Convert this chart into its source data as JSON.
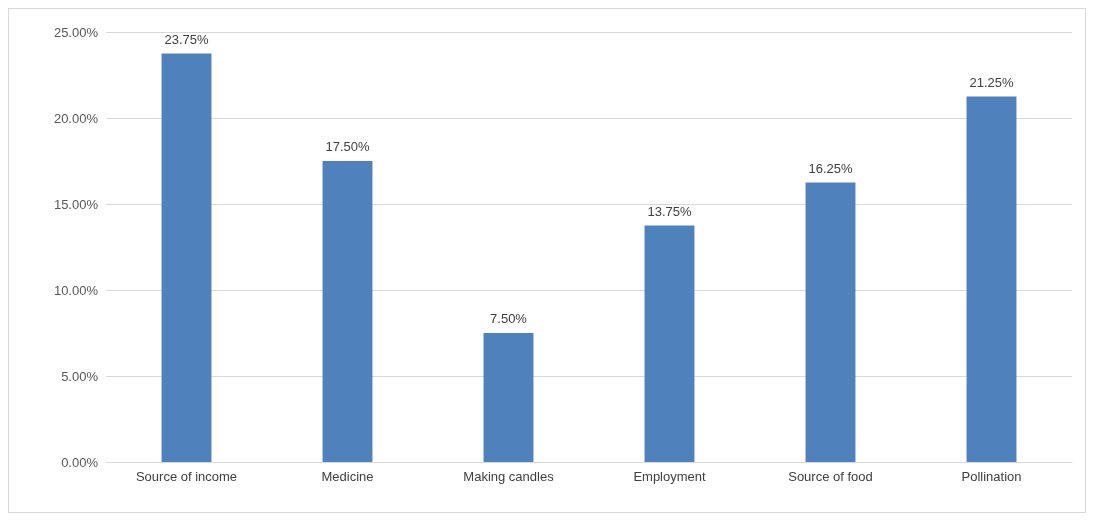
{
  "chart_data": {
    "type": "bar",
    "categories": [
      "Source of income",
      "Medicine",
      "Making candles",
      "Employment",
      "Source of food",
      "Pollination"
    ],
    "values": [
      23.75,
      17.5,
      7.5,
      13.75,
      16.25,
      21.25
    ],
    "value_labels": [
      "23.75%",
      "17.50%",
      "7.50%",
      "13.75%",
      "16.25%",
      "21.25%"
    ],
    "color": "#4f81bd",
    "ylim": [
      0,
      25
    ],
    "yticks": [
      {
        "value": 0,
        "label": "0.00%"
      },
      {
        "value": 5,
        "label": "5.00%"
      },
      {
        "value": 10,
        "label": "10.00%"
      },
      {
        "value": 15,
        "label": "15.00%"
      },
      {
        "value": 20,
        "label": "20.00%"
      },
      {
        "value": 25,
        "label": "25.00%"
      }
    ],
    "grid": "y"
  }
}
